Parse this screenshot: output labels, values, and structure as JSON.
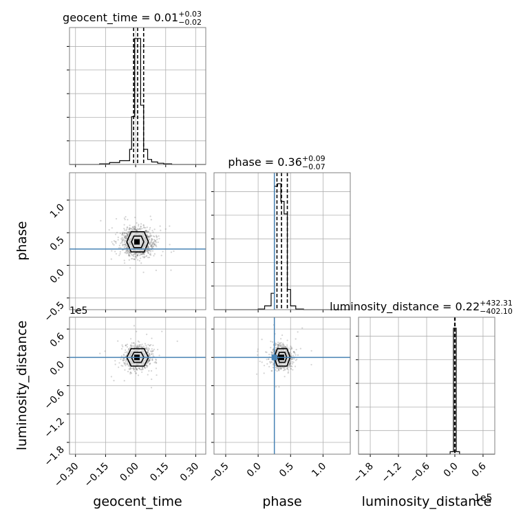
{
  "chart_data": {
    "type": "corner",
    "parameters": [
      {
        "name": "geocent_time",
        "title_value": "0.01",
        "title_plus": "+0.03",
        "title_minus": "−0.02",
        "range": [
          -0.33,
          0.35
        ],
        "ticks": [
          "−0.30",
          "−0.15",
          "0.00",
          "0.15",
          "0.30"
        ],
        "tick_values": [
          -0.3,
          -0.15,
          0.0,
          0.15,
          0.3
        ],
        "quantiles": [
          -0.01,
          0.01,
          0.04
        ],
        "truth": null
      },
      {
        "name": "phase",
        "title_value": "0.36",
        "title_plus": "+0.09",
        "title_minus": "−0.07",
        "range": [
          -0.68,
          1.42
        ],
        "ticks": [
          "−0.5",
          "0.0",
          "0.5",
          "1.0"
        ],
        "tick_values": [
          -0.5,
          0.0,
          0.5,
          1.0
        ],
        "quantiles": [
          0.29,
          0.36,
          0.45
        ],
        "truth": 0.25
      },
      {
        "name": "luminosity_distance",
        "title_value": "0.22",
        "title_plus": "+432.31",
        "title_minus": "−402.10",
        "range": [
          -2.05,
          0.85
        ],
        "ticks": [
          "−1.8",
          "−1.2",
          "−0.6",
          "0.0",
          "0.6"
        ],
        "tick_values": [
          -1.8,
          -1.2,
          -0.6,
          0.0,
          0.6
        ],
        "quantiles": [
          -0.004,
          0.0,
          0.004
        ],
        "truth": null
      }
    ],
    "axis_label_x": [
      "geocent_time",
      "phase",
      "luminosity_distance"
    ],
    "axis_label_y": [
      "phase",
      "luminosity_distance"
    ],
    "offset_label": "1e5",
    "histograms": [
      {
        "param": "geocent_time",
        "bins": [
          -0.33,
          -0.28,
          -0.23,
          -0.18,
          -0.13,
          -0.08,
          -0.03,
          -0.02,
          -0.005,
          0.01,
          0.025,
          0.04,
          0.06,
          0.08,
          0.11,
          0.14,
          0.18,
          0.23,
          0.28,
          0.35
        ],
        "counts": [
          0,
          0,
          0,
          0.5,
          1.5,
          3,
          12,
          38,
          100,
          100,
          47,
          12,
          4,
          2,
          1,
          0.5,
          0,
          0,
          0
        ]
      },
      {
        "param": "phase",
        "bins": [
          -0.68,
          0.0,
          0.1,
          0.2,
          0.25,
          0.3,
          0.35,
          0.4,
          0.45,
          0.5,
          0.58,
          0.7,
          1.42
        ],
        "counts": [
          0,
          0.5,
          3,
          13,
          98,
          100,
          86,
          76,
          16,
          3,
          0.5,
          0
        ]
      },
      {
        "param": "luminosity_distance",
        "bins": [
          -2.05,
          -0.1,
          -0.03,
          0.0,
          0.03,
          0.1,
          0.85
        ],
        "counts": [
          0,
          2,
          100,
          100,
          2,
          0
        ]
      }
    ],
    "grid": true,
    "truth_color": "#4682b4",
    "contour_color": "#000000",
    "sample_color": "#808080"
  }
}
